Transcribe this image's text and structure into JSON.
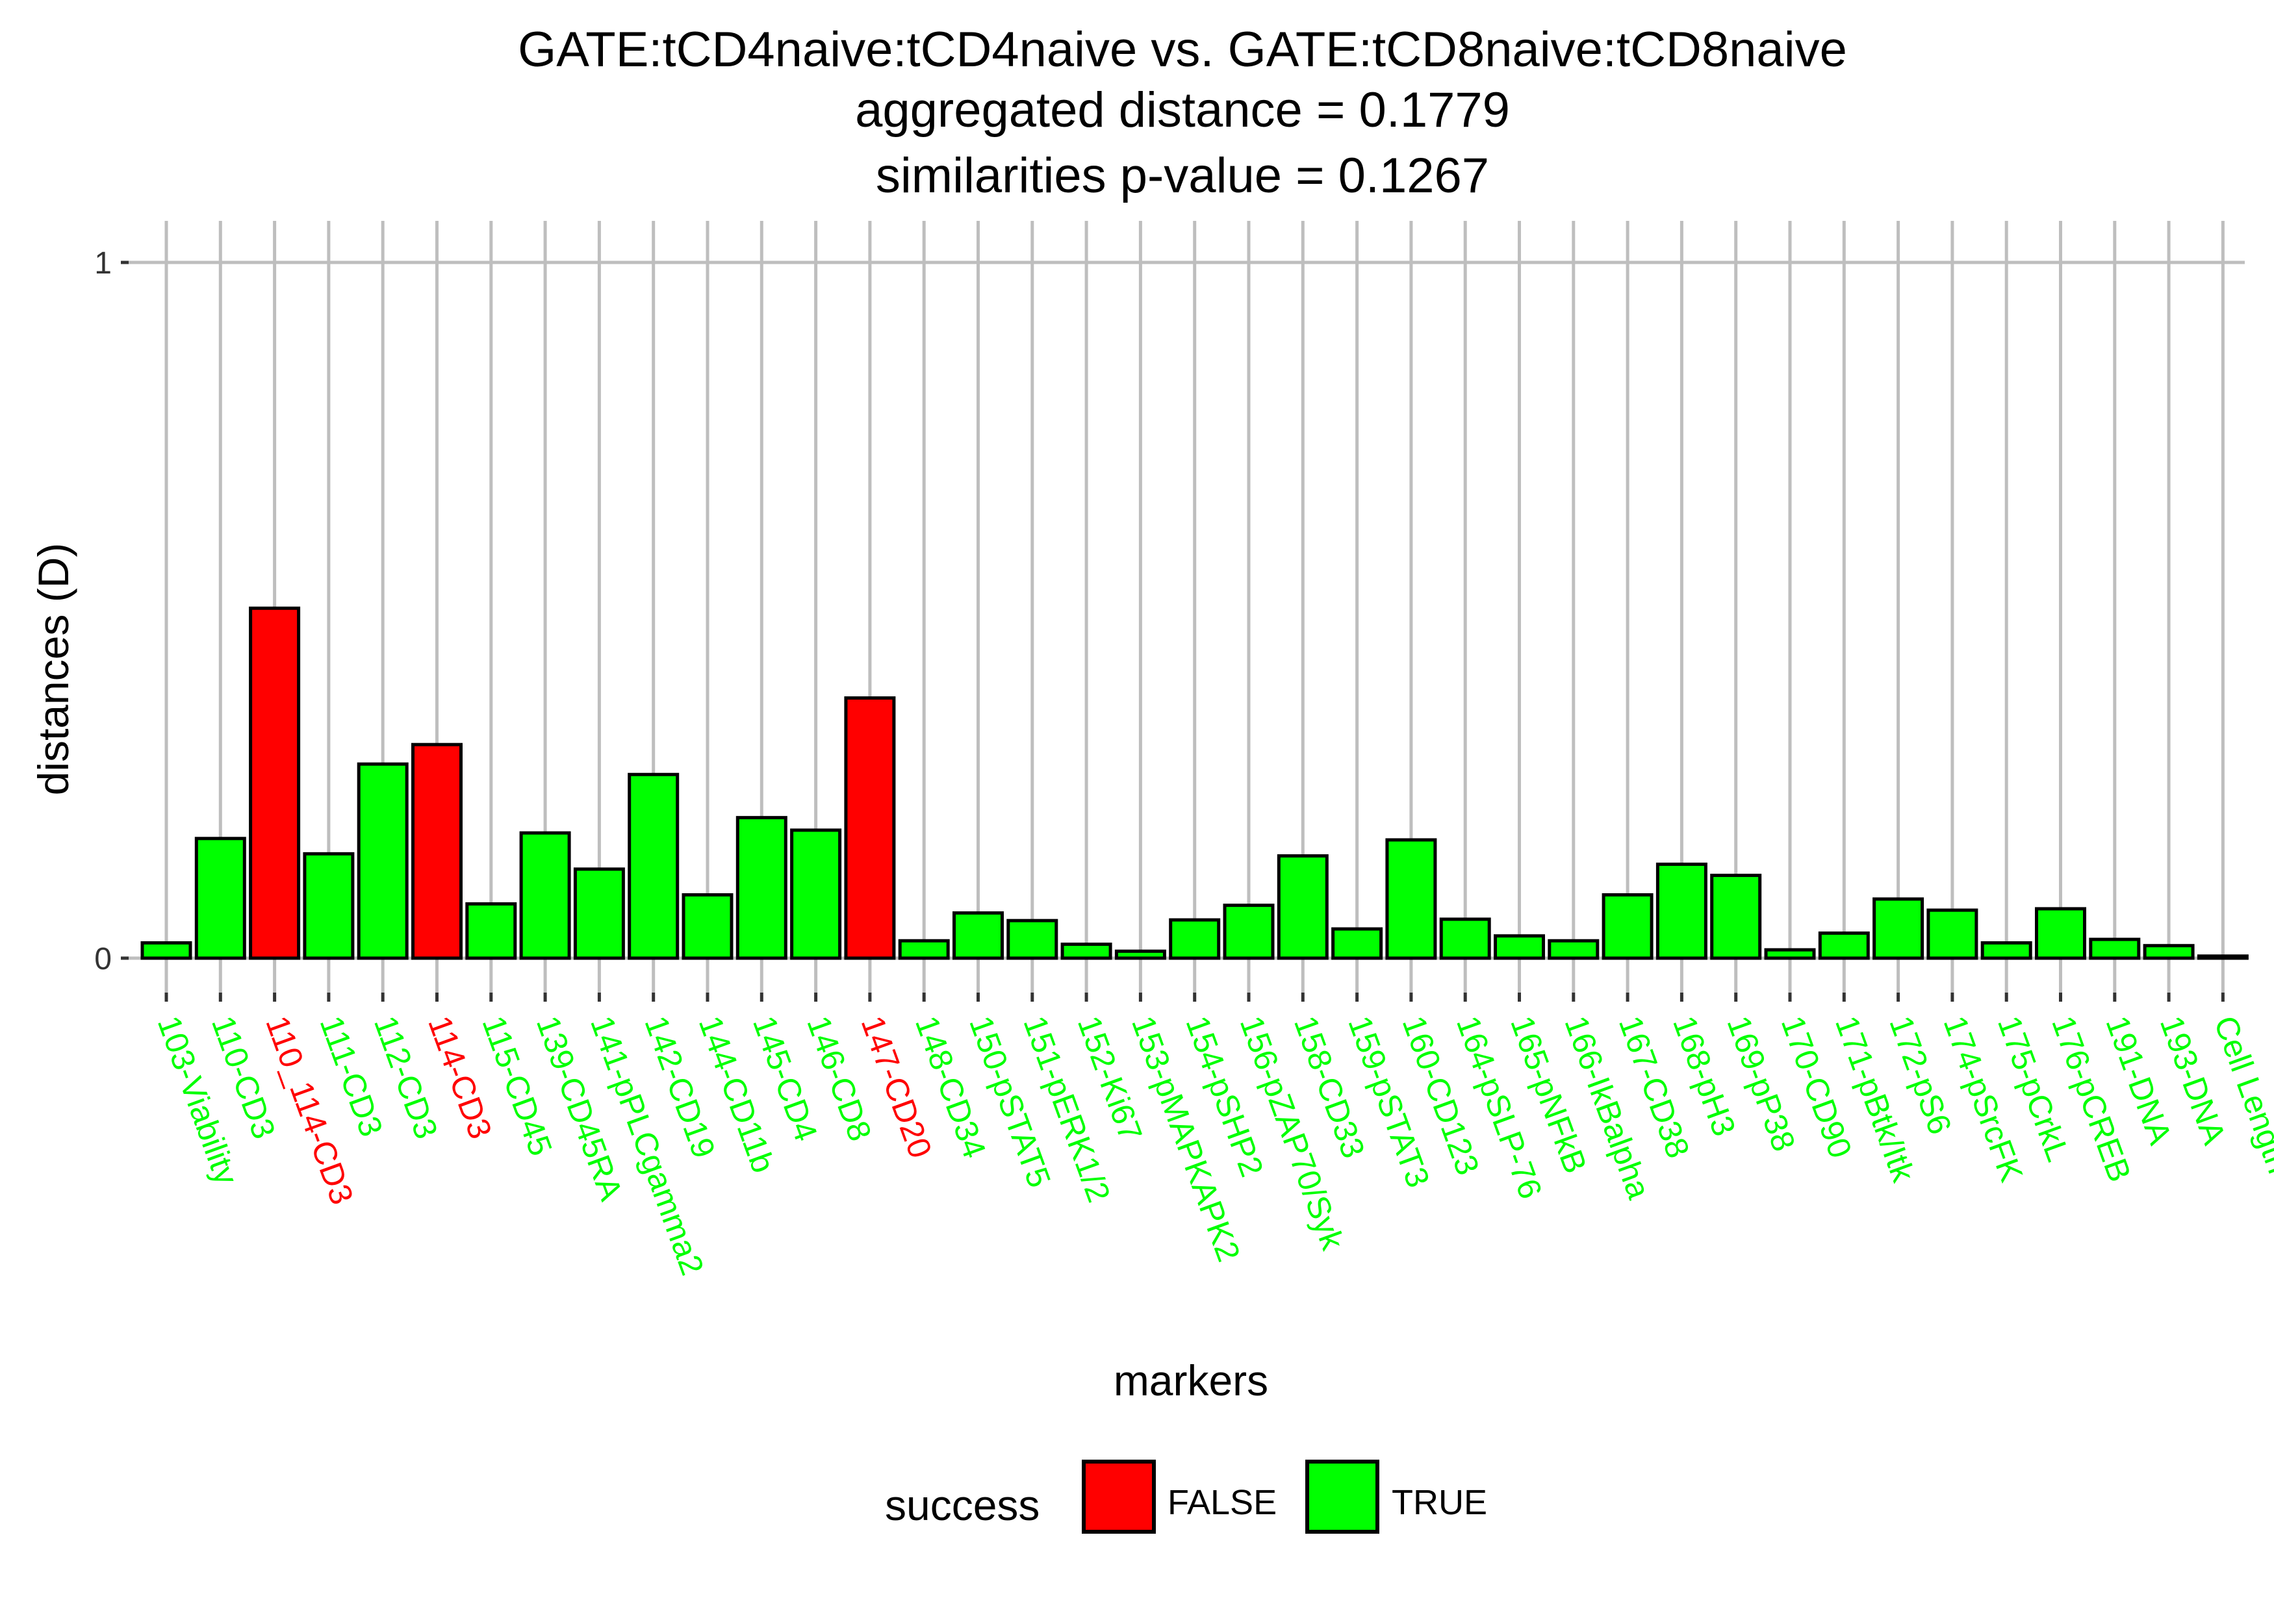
{
  "chart_data": {
    "type": "bar",
    "title_lines": [
      "GATE:tCD4naive:tCD4naive  vs.  GATE:tCD8naive:tCD8naive",
      "aggregated distance =  0.1779",
      "similarities p-value =  0.1267"
    ],
    "xlabel": "markers",
    "ylabel": "distances (D)",
    "ylim": [
      0,
      1
    ],
    "yticks": [
      0,
      1
    ],
    "grid": true,
    "legend": {
      "title": "success",
      "placement": "bottom",
      "entries": [
        {
          "label": "FALSE",
          "color": "#FF0000"
        },
        {
          "label": "TRUE",
          "color": "#00FF00"
        }
      ]
    },
    "categories": [
      "103-Viability",
      "110-CD3",
      "110_114-CD3",
      "111-CD3",
      "112-CD3",
      "114-CD3",
      "115-CD45",
      "139-CD45RA",
      "141-pPLCgamma2",
      "142-CD19",
      "144-CD11b",
      "145-CD4",
      "146-CD8",
      "147-CD20",
      "148-CD34",
      "150-pSTAT5",
      "151-pERK1/2",
      "152-Ki67",
      "153-pMAPKAPK2",
      "154-pSHP2",
      "156-pZAP70/Syk",
      "158-CD33",
      "159-pSTAT3",
      "160-CD123",
      "164-pSLP-76",
      "165-pNFkB",
      "166-IkBalpha",
      "167-CD38",
      "168-pH3",
      "169-pP38",
      "170-CD90",
      "171-pBtk/Itk",
      "172-pS6",
      "174-pSrcFK",
      "175-pCrkL",
      "176-pCREB",
      "191-DNA",
      "193-DNA",
      "Cell Length"
    ],
    "values": [
      0.022,
      0.172,
      0.503,
      0.15,
      0.279,
      0.307,
      0.078,
      0.18,
      0.128,
      0.264,
      0.091,
      0.202,
      0.184,
      0.374,
      0.025,
      0.065,
      0.054,
      0.02,
      0.01,
      0.055,
      0.076,
      0.147,
      0.042,
      0.17,
      0.056,
      0.032,
      0.025,
      0.091,
      0.135,
      0.119,
      0.012,
      0.036,
      0.085,
      0.069,
      0.022,
      0.071,
      0.027,
      0.018,
      0.003
    ],
    "success": [
      true,
      true,
      false,
      true,
      true,
      false,
      true,
      true,
      true,
      true,
      true,
      true,
      true,
      false,
      true,
      true,
      true,
      true,
      true,
      true,
      true,
      true,
      true,
      true,
      true,
      true,
      true,
      true,
      true,
      true,
      true,
      true,
      true,
      true,
      true,
      true,
      true,
      true,
      true
    ]
  },
  "colors": {
    "false_fill": "#FF0000",
    "true_fill": "#00FF00",
    "grid": "#BEBEBE",
    "bar_outline": "#000000"
  }
}
